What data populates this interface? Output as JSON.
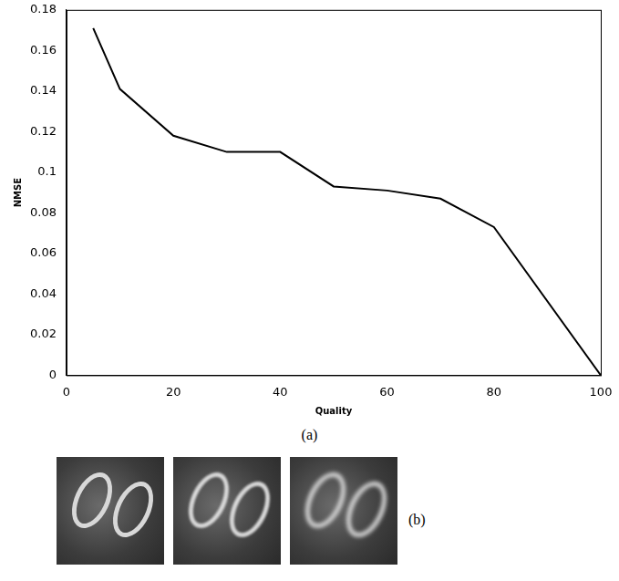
{
  "chart_data": {
    "type": "line",
    "x": [
      5,
      10,
      20,
      30,
      40,
      50,
      60,
      70,
      80,
      100
    ],
    "values": [
      0.171,
      0.141,
      0.118,
      0.11,
      0.11,
      0.093,
      0.091,
      0.087,
      0.073,
      0.0
    ],
    "color": "#000000",
    "x_label": "Quality",
    "y_label": "NMSE",
    "xlim": [
      0,
      100
    ],
    "xticks": [
      0,
      20,
      40,
      60,
      80,
      100
    ],
    "ylim": [
      0,
      0.18
    ],
    "yticks": [
      0,
      0.02,
      0.04,
      0.06,
      0.08,
      0.1,
      0.12,
      0.14,
      0.16,
      0.18
    ],
    "grid": false,
    "marker": "none",
    "line_style": "solid"
  },
  "figure": {
    "panel_labels": [
      "(a)",
      "(b)"
    ]
  }
}
